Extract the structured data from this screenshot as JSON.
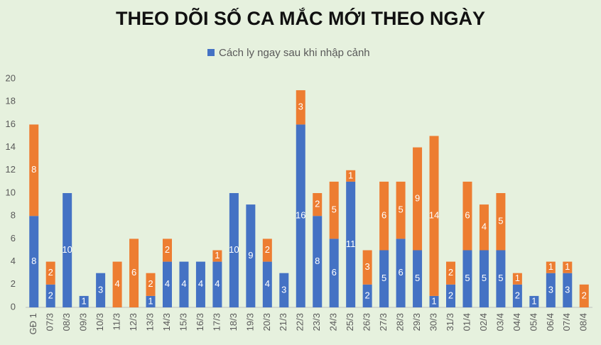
{
  "chart_data": {
    "type": "stacked-bar",
    "title": "THEO DÕI SỐ CA MẮC MỚI THEO NGÀY",
    "categories": [
      "GĐ 1",
      "07/3",
      "08/3",
      "09/3",
      "10/3",
      "11/3",
      "12/3",
      "13/3",
      "14/3",
      "15/3",
      "16/3",
      "17/3",
      "18/3",
      "19/3",
      "20/3",
      "21/3",
      "22/3",
      "23/3",
      "24/3",
      "25/3",
      "26/3",
      "27/3",
      "28/3",
      "29/3",
      "30/3",
      "31/3",
      "01/4",
      "02/4",
      "03/4",
      "04/4",
      "05/4",
      "06/4",
      "07/4",
      "08/4"
    ],
    "series": [
      {
        "name": "Cách ly ngay sau khi nhập cảnh",
        "color": "#4472c4",
        "values": [
          8,
          2,
          10,
          1,
          3,
          null,
          null,
          1,
          4,
          4,
          4,
          4,
          10,
          9,
          4,
          3,
          16,
          8,
          6,
          11,
          2,
          5,
          6,
          5,
          1,
          2,
          5,
          5,
          5,
          2,
          1,
          3,
          3,
          null
        ]
      },
      {
        "color": "#ed7d31",
        "values": [
          8,
          2,
          null,
          null,
          null,
          4,
          6,
          2,
          2,
          null,
          null,
          1,
          null,
          null,
          2,
          null,
          3,
          2,
          5,
          1,
          3,
          6,
          5,
          9,
          14,
          2,
          6,
          4,
          5,
          1,
          null,
          1,
          1,
          2
        ]
      }
    ],
    "ylim": [
      0,
      20
    ],
    "yticks": [
      0,
      2,
      4,
      6,
      8,
      10,
      12,
      14,
      16,
      18,
      20
    ],
    "grid": false,
    "legend": "top"
  }
}
